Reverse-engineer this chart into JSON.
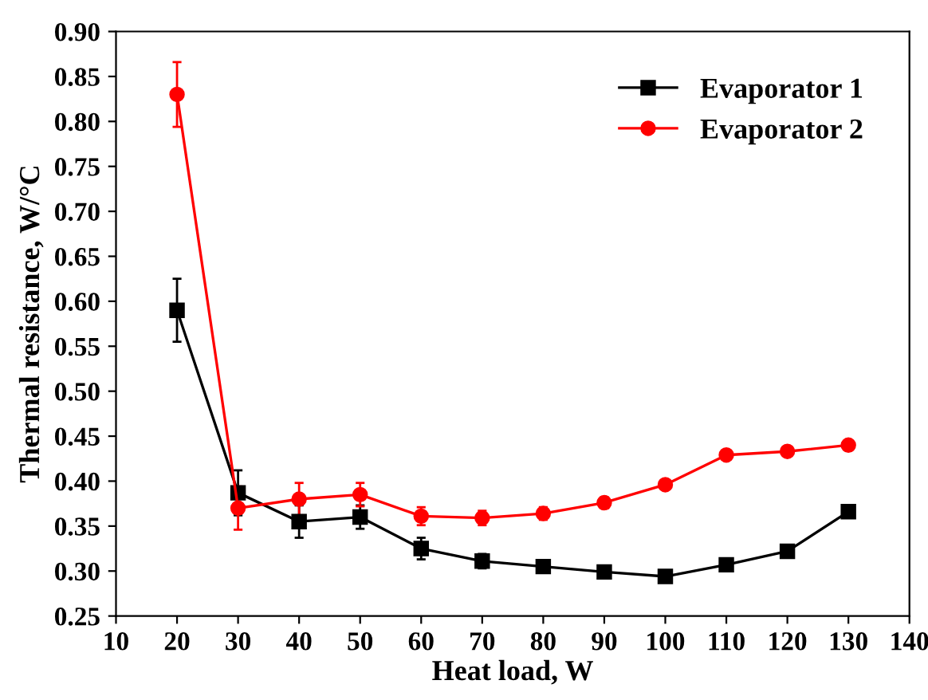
{
  "chart_data": {
    "type": "line",
    "xlabel": "Heat load, W",
    "ylabel": "Thermal resistance, W/°C",
    "x": [
      20,
      30,
      40,
      50,
      60,
      70,
      80,
      90,
      100,
      110,
      120,
      130
    ],
    "series": [
      {
        "name": "Evaporator 1",
        "color": "#000000",
        "marker": "square",
        "values": [
          0.59,
          0.387,
          0.355,
          0.36,
          0.325,
          0.311,
          0.305,
          0.299,
          0.294,
          0.307,
          0.322,
          0.366
        ],
        "errors": [
          0.035,
          0.025,
          0.018,
          0.013,
          0.012,
          0.008,
          0.007,
          0.006,
          0.005,
          0.005,
          0.005,
          0.004
        ]
      },
      {
        "name": "Evaporator 2",
        "color": "#ff0000",
        "marker": "circle",
        "values": [
          0.83,
          0.37,
          0.38,
          0.385,
          0.361,
          0.359,
          0.364,
          0.376,
          0.396,
          0.429,
          0.433,
          0.44
        ],
        "errors": [
          0.036,
          0.024,
          0.018,
          0.013,
          0.01,
          0.008,
          0.007,
          0.006,
          0.005,
          0.005,
          0.005,
          0.004
        ]
      }
    ],
    "xlim": [
      10,
      140
    ],
    "xticks": [
      10,
      20,
      30,
      40,
      50,
      60,
      70,
      80,
      90,
      100,
      110,
      120,
      130,
      140
    ],
    "ylim": [
      0.25,
      0.9
    ],
    "yticks": [
      {
        "value": 0.25,
        "label": "0.25"
      },
      {
        "value": 0.3,
        "label": "0.30"
      },
      {
        "value": 0.35,
        "label": "0.35"
      },
      {
        "value": 0.4,
        "label": "0.40"
      },
      {
        "value": 0.45,
        "label": "0.45"
      },
      {
        "value": 0.5,
        "label": "0.50"
      },
      {
        "value": 0.55,
        "label": "0.55"
      },
      {
        "value": 0.6,
        "label": "0.60"
      },
      {
        "value": 0.65,
        "label": "0.65"
      },
      {
        "value": 0.7,
        "label": "0.70"
      },
      {
        "value": 0.75,
        "label": "0.75"
      },
      {
        "value": 0.8,
        "label": "0.80"
      },
      {
        "value": 0.85,
        "label": "0.85"
      },
      {
        "value": 0.9,
        "label": "0.90"
      }
    ],
    "grid": false,
    "legend": "top right",
    "line_style": "solid"
  }
}
